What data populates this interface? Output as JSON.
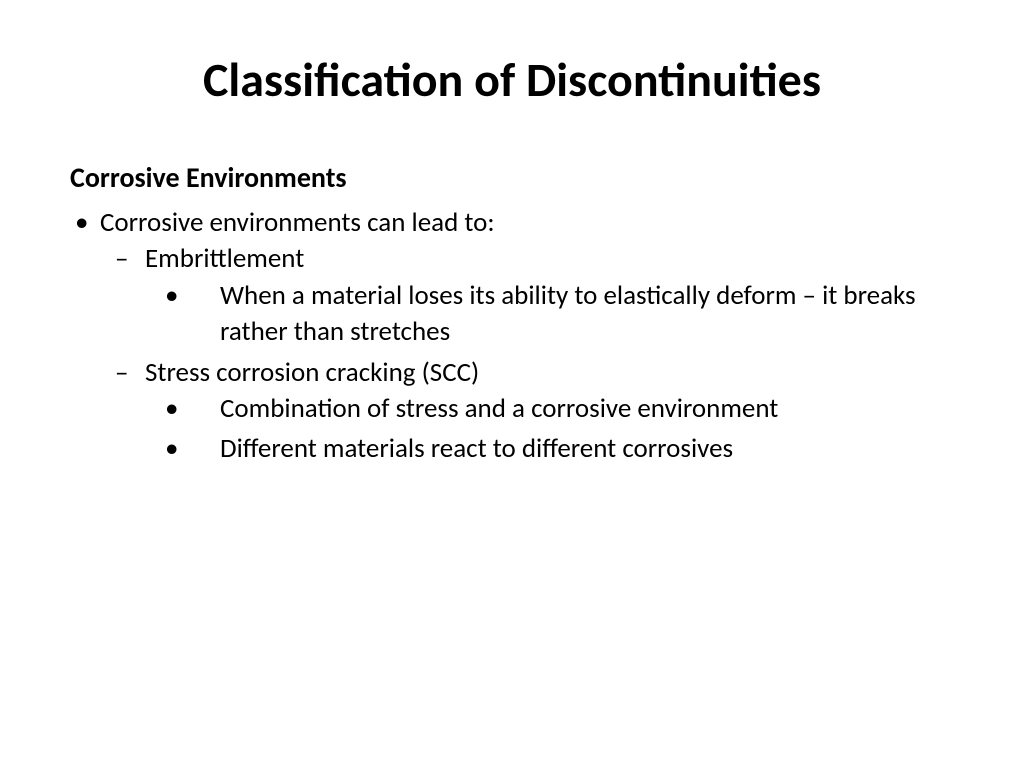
{
  "title": "Classification of Discontinuities",
  "subtitle": "Corrosive Environments",
  "content": {
    "intro": "Corrosive environments can lead to:",
    "item1": {
      "heading": "Embrittlement",
      "detail": "When a material loses its ability to elastically deform – it breaks rather than stretches"
    },
    "item2": {
      "heading": "Stress corrosion cracking (SCC)",
      "detail1": "Combination of stress and a corrosive environment",
      "detail2": "Different materials react to different corrosives"
    }
  },
  "styling": {
    "background_color": "#ffffff",
    "text_color": "#000000",
    "title_fontsize": 48,
    "subtitle_fontsize": 28,
    "body_fontsize": 27,
    "font_family": "Calibri",
    "title_weight": "bold",
    "subtitle_weight": "bold"
  }
}
